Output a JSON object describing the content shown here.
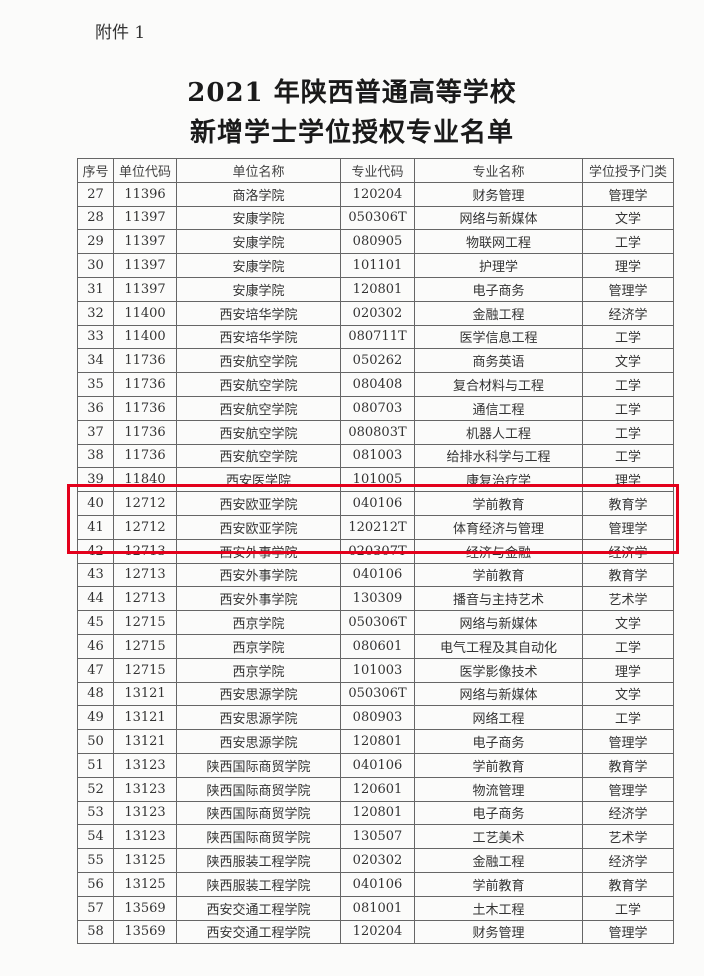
{
  "attachment_label": "附件 1",
  "title_line1": "2021 年陕西普通高等学校",
  "title_line2": "新增学士学位授权专业名单",
  "highlight_color": "#e3001b",
  "table": {
    "headers": [
      "序号",
      "单位代码",
      "单位名称",
      "专业代码",
      "专业名称",
      "学位授予门类"
    ],
    "rows": [
      [
        "27",
        "11396",
        "商洛学院",
        "120204",
        "财务管理",
        "管理学"
      ],
      [
        "28",
        "11397",
        "安康学院",
        "050306T",
        "网络与新媒体",
        "文学"
      ],
      [
        "29",
        "11397",
        "安康学院",
        "080905",
        "物联网工程",
        "工学"
      ],
      [
        "30",
        "11397",
        "安康学院",
        "101101",
        "护理学",
        "理学"
      ],
      [
        "31",
        "11397",
        "安康学院",
        "120801",
        "电子商务",
        "管理学"
      ],
      [
        "32",
        "11400",
        "西安培华学院",
        "020302",
        "金融工程",
        "经济学"
      ],
      [
        "33",
        "11400",
        "西安培华学院",
        "080711T",
        "医学信息工程",
        "工学"
      ],
      [
        "34",
        "11736",
        "西安航空学院",
        "050262",
        "商务英语",
        "文学"
      ],
      [
        "35",
        "11736",
        "西安航空学院",
        "080408",
        "复合材料与工程",
        "工学"
      ],
      [
        "36",
        "11736",
        "西安航空学院",
        "080703",
        "通信工程",
        "工学"
      ],
      [
        "37",
        "11736",
        "西安航空学院",
        "080803T",
        "机器人工程",
        "工学"
      ],
      [
        "38",
        "11736",
        "西安航空学院",
        "081003",
        "给排水科学与工程",
        "工学"
      ],
      [
        "39",
        "11840",
        "西安医学院",
        "101005",
        "康复治疗学",
        "理学"
      ],
      [
        "40",
        "12712",
        "西安欧亚学院",
        "040106",
        "学前教育",
        "教育学"
      ],
      [
        "41",
        "12712",
        "西安欧亚学院",
        "120212T",
        "体育经济与管理",
        "管理学"
      ],
      [
        "42",
        "12713",
        "西安外事学院",
        "020307T",
        "经济与金融",
        "经济学"
      ],
      [
        "43",
        "12713",
        "西安外事学院",
        "040106",
        "学前教育",
        "教育学"
      ],
      [
        "44",
        "12713",
        "西安外事学院",
        "130309",
        "播音与主持艺术",
        "艺术学"
      ],
      [
        "45",
        "12715",
        "西京学院",
        "050306T",
        "网络与新媒体",
        "文学"
      ],
      [
        "46",
        "12715",
        "西京学院",
        "080601",
        "电气工程及其自动化",
        "工学"
      ],
      [
        "47",
        "12715",
        "西京学院",
        "101003",
        "医学影像技术",
        "理学"
      ],
      [
        "48",
        "13121",
        "西安思源学院",
        "050306T",
        "网络与新媒体",
        "文学"
      ],
      [
        "49",
        "13121",
        "西安思源学院",
        "080903",
        "网络工程",
        "工学"
      ],
      [
        "50",
        "13121",
        "西安思源学院",
        "120801",
        "电子商务",
        "管理学"
      ],
      [
        "51",
        "13123",
        "陕西国际商贸学院",
        "040106",
        "学前教育",
        "教育学"
      ],
      [
        "52",
        "13123",
        "陕西国际商贸学院",
        "120601",
        "物流管理",
        "管理学"
      ],
      [
        "53",
        "13123",
        "陕西国际商贸学院",
        "120801",
        "电子商务",
        "经济学"
      ],
      [
        "54",
        "13123",
        "陕西国际商贸学院",
        "130507",
        "工艺美术",
        "艺术学"
      ],
      [
        "55",
        "13125",
        "陕西服装工程学院",
        "020302",
        "金融工程",
        "经济学"
      ],
      [
        "56",
        "13125",
        "陕西服装工程学院",
        "040106",
        "学前教育",
        "教育学"
      ],
      [
        "57",
        "13569",
        "西安交通工程学院",
        "081001",
        "土木工程",
        "工学"
      ],
      [
        "58",
        "13569",
        "西安交通工程学院",
        "120204",
        "财务管理",
        "管理学"
      ]
    ]
  }
}
